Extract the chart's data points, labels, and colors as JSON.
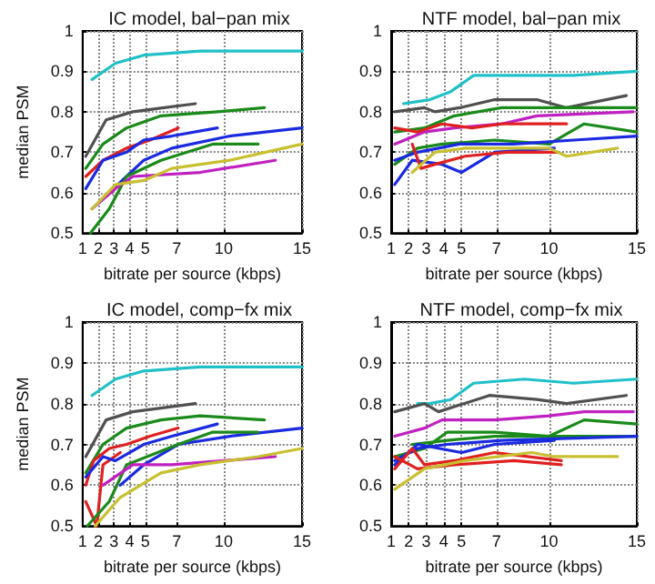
{
  "chart_data": [
    {
      "type": "line",
      "title": "IC model, bal−pan mix",
      "xlabel": "bitrate per source (kbps)",
      "ylabel": "median PSM",
      "xlim": [
        1,
        15
      ],
      "xticks": [
        1,
        2,
        3,
        4,
        5,
        7,
        10,
        15
      ],
      "ylim": [
        0.5,
        1
      ],
      "yticks": [
        0.5,
        0.6,
        0.7,
        0.8,
        0.9,
        1
      ],
      "grid": true,
      "marker": "none",
      "line_style": "solid",
      "series": [
        {
          "color": "#20c0c8",
          "x": [
            1.6,
            3.1,
            4.9,
            8.5,
            15
          ],
          "values": [
            0.88,
            0.92,
            0.94,
            0.95,
            0.95
          ]
        },
        {
          "color": "#505050",
          "x": [
            1.2,
            2.5,
            4.2,
            6.2,
            8.2
          ],
          "values": [
            0.69,
            0.78,
            0.8,
            0.81,
            0.82
          ]
        },
        {
          "color": "#1a8a1a",
          "x": [
            1.2,
            2.3,
            3.8,
            6,
            9.6,
            12.6
          ],
          "values": [
            0.66,
            0.72,
            0.76,
            0.79,
            0.8,
            0.81
          ]
        },
        {
          "color": "#e02020",
          "x": [
            1.2,
            2.3,
            3.8,
            5.3,
            7.1
          ],
          "values": [
            0.64,
            0.68,
            0.71,
            0.73,
            0.76
          ]
        },
        {
          "color": "#1a2ae0",
          "x": [
            1.2,
            2.3,
            3.8,
            4.9,
            6.7,
            9.6
          ],
          "values": [
            0.61,
            0.68,
            0.7,
            0.73,
            0.74,
            0.76
          ]
        },
        {
          "color": "#1a2ae0",
          "x": [
            2.7,
            3.8,
            4.9,
            6.7,
            10.4,
            15
          ],
          "values": [
            0.6,
            0.64,
            0.68,
            0.71,
            0.74,
            0.76
          ]
        },
        {
          "color": "#1a8a1a",
          "x": [
            1.5,
            2.7,
            3.8,
            6,
            9.3,
            12.2
          ],
          "values": [
            0.5,
            0.56,
            0.64,
            0.68,
            0.72,
            0.72
          ]
        },
        {
          "color": "#c020c0",
          "x": [
            1.6,
            3.1,
            4.2,
            8.5,
            13.3
          ],
          "values": [
            0.56,
            0.61,
            0.64,
            0.65,
            0.68
          ]
        },
        {
          "color": "#c8c030",
          "x": [
            1.6,
            3.1,
            4.9,
            6.7,
            10.4,
            15
          ],
          "values": [
            0.56,
            0.62,
            0.63,
            0.66,
            0.68,
            0.72
          ]
        }
      ]
    },
    {
      "type": "line",
      "title": "NTF model, bal−pan mix",
      "xlabel": "bitrate per source (kbps)",
      "xlim": [
        1,
        15
      ],
      "xticks": [
        1,
        2,
        3,
        4,
        5,
        7,
        10,
        15
      ],
      "ylim": [
        0.5,
        1
      ],
      "yticks": [
        0.5,
        0.6,
        0.7,
        0.8,
        0.9,
        1
      ],
      "grid": true,
      "marker": "none",
      "line_style": "solid",
      "series": [
        {
          "color": "#20c0c8",
          "x": [
            1.7,
            3.2,
            4.4,
            5.7,
            11.4,
            15
          ],
          "values": [
            0.82,
            0.83,
            0.85,
            0.89,
            0.89,
            0.9
          ]
        },
        {
          "color": "#505050",
          "x": [
            1.2,
            2.9,
            3.5,
            4.9,
            6.9,
            9.3,
            11,
            14.4
          ],
          "values": [
            0.8,
            0.81,
            0.8,
            0.81,
            0.83,
            0.83,
            0.81,
            0.84
          ]
        },
        {
          "color": "#1a8a1a",
          "x": [
            1.2,
            2.9,
            4.6,
            7.3,
            15
          ],
          "values": [
            0.75,
            0.76,
            0.79,
            0.81,
            0.81
          ]
        },
        {
          "color": "#c020c0",
          "x": [
            1.2,
            2.9,
            4.6,
            7.3,
            9.3,
            14.8
          ],
          "values": [
            0.72,
            0.75,
            0.76,
            0.77,
            0.79,
            0.8
          ]
        },
        {
          "color": "#e02020",
          "x": [
            1.2,
            2.5,
            3.9,
            5.6,
            7.3,
            11
          ],
          "values": [
            0.76,
            0.75,
            0.77,
            0.76,
            0.77,
            0.77
          ]
        },
        {
          "color": "#1a8a1a",
          "x": [
            1.2,
            2.5,
            3.9,
            6.9,
            10,
            12,
            15
          ],
          "values": [
            0.67,
            0.71,
            0.72,
            0.73,
            0.72,
            0.77,
            0.75
          ]
        },
        {
          "color": "#1a2ae0",
          "x": [
            1.2,
            2.5,
            4.9,
            8,
            11.4,
            15
          ],
          "values": [
            0.68,
            0.7,
            0.72,
            0.72,
            0.73,
            0.74
          ]
        },
        {
          "color": "#1a2ae0",
          "x": [
            1.2,
            2.2,
            3.9,
            5,
            6.9,
            10.3
          ],
          "values": [
            0.62,
            0.68,
            0.67,
            0.65,
            0.7,
            0.71
          ]
        },
        {
          "color": "#e02020",
          "x": [
            2.2,
            2.7,
            3.5,
            5.2,
            7.6,
            10.5
          ],
          "values": [
            0.72,
            0.66,
            0.67,
            0.69,
            0.7,
            0.7
          ]
        },
        {
          "color": "#c8c030",
          "x": [
            2.2,
            3.5,
            5.2,
            8,
            10,
            11,
            13.9
          ],
          "values": [
            0.65,
            0.7,
            0.71,
            0.71,
            0.71,
            0.69,
            0.71
          ]
        }
      ]
    },
    {
      "type": "line",
      "title": "IC model, comp−fx mix",
      "xlabel": "bitrate per source (kbps)",
      "ylabel": "median PSM",
      "xlim": [
        1,
        15
      ],
      "xticks": [
        1,
        2,
        3,
        4,
        5,
        7,
        10,
        15
      ],
      "ylim": [
        0.5,
        1
      ],
      "yticks": [
        0.5,
        0.6,
        0.7,
        0.8,
        0.9,
        1
      ],
      "grid": true,
      "marker": "none",
      "line_style": "solid",
      "series": [
        {
          "color": "#20c0c8",
          "x": [
            1.6,
            3.1,
            4.9,
            8.5,
            15
          ],
          "values": [
            0.82,
            0.86,
            0.88,
            0.89,
            0.89
          ]
        },
        {
          "color": "#505050",
          "x": [
            1.2,
            2.5,
            4.2,
            6.2,
            8.2
          ],
          "values": [
            0.67,
            0.76,
            0.78,
            0.79,
            0.8
          ]
        },
        {
          "color": "#1a8a1a",
          "x": [
            1.2,
            2.3,
            3.8,
            6,
            8.5,
            12.6
          ],
          "values": [
            0.63,
            0.7,
            0.74,
            0.76,
            0.77,
            0.76
          ]
        },
        {
          "color": "#e02020",
          "x": [
            1.2,
            1.7,
            2.7,
            3.8,
            5.3,
            7.1
          ],
          "values": [
            0.6,
            0.66,
            0.69,
            0.7,
            0.72,
            0.74
          ]
        },
        {
          "color": "#e02020",
          "x": [
            1.2,
            1.9,
            2.3,
            3.4
          ],
          "values": [
            0.56,
            0.5,
            0.65,
            0.68
          ]
        },
        {
          "color": "#1a2ae0",
          "x": [
            1.2,
            2.3,
            3.1,
            4.9,
            6.7,
            9.6
          ],
          "values": [
            0.62,
            0.67,
            0.66,
            0.7,
            0.72,
            0.75
          ]
        },
        {
          "color": "#1a2ae0",
          "x": [
            3.4,
            4.9,
            7.1,
            10.4,
            15
          ],
          "values": [
            0.6,
            0.65,
            0.7,
            0.72,
            0.74
          ]
        },
        {
          "color": "#1a8a1a",
          "x": [
            1.3,
            2.7,
            3.8,
            7.1,
            9.3,
            12.2
          ],
          "values": [
            0.5,
            0.56,
            0.65,
            0.7,
            0.73,
            0.73
          ]
        },
        {
          "color": "#c020c0",
          "x": [
            2.3,
            4.2,
            6.7,
            13.3
          ],
          "values": [
            0.6,
            0.65,
            0.65,
            0.67
          ]
        },
        {
          "color": "#c8c030",
          "x": [
            1.8,
            3.4,
            6,
            8.5,
            12.2,
            15
          ],
          "values": [
            0.5,
            0.57,
            0.63,
            0.65,
            0.67,
            0.69
          ]
        }
      ]
    },
    {
      "type": "line",
      "title": "NTF model, comp−fx mix",
      "xlabel": "bitrate per source (kbps)",
      "xlim": [
        1,
        15
      ],
      "xticks": [
        1,
        2,
        3,
        4,
        5,
        7,
        10,
        15
      ],
      "ylim": [
        0.5,
        1
      ],
      "yticks": [
        0.5,
        0.6,
        0.7,
        0.8,
        0.9,
        1
      ],
      "grid": true,
      "marker": "none",
      "line_style": "solid",
      "series": [
        {
          "color": "#20c0c8",
          "x": [
            2.5,
            3.2,
            4.4,
            5.7,
            8.6,
            11.4,
            15
          ],
          "values": [
            0.8,
            0.8,
            0.81,
            0.85,
            0.86,
            0.85,
            0.86
          ]
        },
        {
          "color": "#505050",
          "x": [
            1.2,
            2.9,
            3.7,
            6.6,
            9.3,
            11,
            14.4
          ],
          "values": [
            0.78,
            0.8,
            0.78,
            0.82,
            0.81,
            0.8,
            0.82
          ]
        },
        {
          "color": "#c020c0",
          "x": [
            1.2,
            2.9,
            3.9,
            6.9,
            10,
            12,
            14.8
          ],
          "values": [
            0.72,
            0.74,
            0.76,
            0.76,
            0.77,
            0.78,
            0.78
          ]
        },
        {
          "color": "#1a8a1a",
          "x": [
            1.2,
            2.9,
            4.2,
            6.9,
            10,
            12,
            15
          ],
          "values": [
            0.67,
            0.69,
            0.73,
            0.73,
            0.72,
            0.76,
            0.75
          ]
        },
        {
          "color": "#1a8a1a",
          "x": [
            2.2,
            4.2,
            6.9,
            10,
            15
          ],
          "values": [
            0.7,
            0.71,
            0.72,
            0.72,
            0.72
          ]
        },
        {
          "color": "#1a2ae0",
          "x": [
            1.2,
            2.5,
            5,
            6.9,
            10.3
          ],
          "values": [
            0.65,
            0.7,
            0.68,
            0.7,
            0.71
          ]
        },
        {
          "color": "#1a2ae0",
          "x": [
            1.2,
            2.5,
            4.2,
            7.3,
            15
          ],
          "values": [
            0.66,
            0.69,
            0.7,
            0.71,
            0.72
          ]
        },
        {
          "color": "#e02020",
          "x": [
            1.2,
            2.2,
            2.9,
            4.6,
            6.9,
            10.7
          ],
          "values": [
            0.64,
            0.69,
            0.65,
            0.66,
            0.68,
            0.66
          ]
        },
        {
          "color": "#e02020",
          "x": [
            1.2,
            2.5,
            4.6,
            8,
            10.7
          ],
          "values": [
            0.67,
            0.64,
            0.65,
            0.66,
            0.65
          ]
        },
        {
          "color": "#c8c030",
          "x": [
            1.2,
            2.9,
            5.2,
            9,
            10.3,
            13.9
          ],
          "values": [
            0.59,
            0.64,
            0.66,
            0.68,
            0.67,
            0.67
          ]
        }
      ]
    }
  ]
}
